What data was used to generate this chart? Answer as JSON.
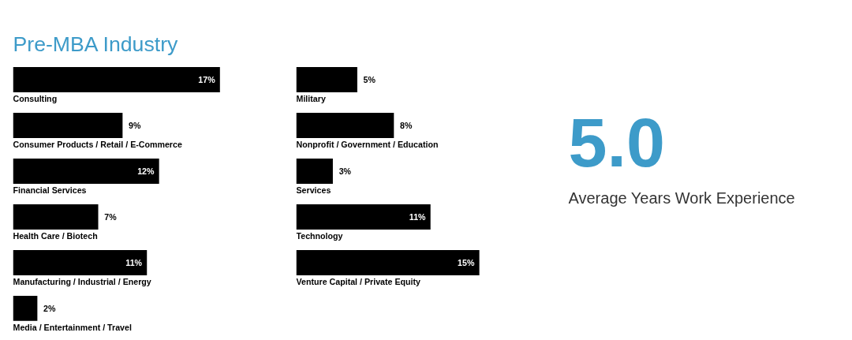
{
  "chart_data": [
    {
      "type": "bar",
      "orientation": "horizontal",
      "title": "Pre-MBA Industry",
      "categories": [
        "Consulting",
        "Consumer Products / Retail / E-Commerce",
        "Financial Services",
        "Health Care / Biotech",
        "Manufacturing / Industrial / Energy",
        "Media / Entertainment / Travel"
      ],
      "values": [
        17,
        9,
        12,
        7,
        11,
        2
      ],
      "value_labels": [
        "17%",
        "9%",
        "12%",
        "7%",
        "11%",
        "2%"
      ],
      "color": "#000000",
      "tick_labels": false,
      "grid": false
    },
    {
      "type": "bar",
      "orientation": "horizontal",
      "categories": [
        "Military",
        "Nonprofit / Government / Education",
        "Services",
        "Technology",
        "Venture Capital / Private Equity"
      ],
      "values": [
        5,
        8,
        3,
        11,
        15
      ],
      "value_labels": [
        "5%",
        "8%",
        "3%",
        "11%",
        "15%"
      ],
      "color": "#000000",
      "tick_labels": false,
      "grid": false
    },
    {
      "type": "other",
      "annotations": [
        "5.0",
        "Average Years Work Experience"
      ]
    }
  ]
}
